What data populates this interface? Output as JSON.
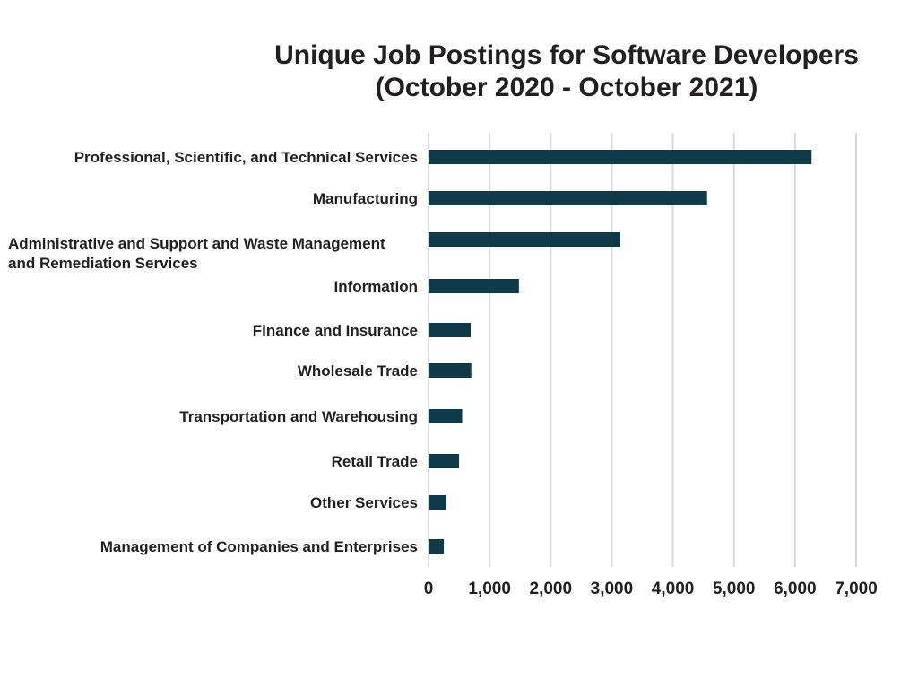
{
  "chart_data": {
    "type": "bar",
    "orientation": "horizontal",
    "title": "Unique Job Postings for Software Developers",
    "subtitle": "(October 2020 - October 2021)",
    "categories": [
      [
        "Professional, Scientific, and Technical Services"
      ],
      [
        "Manufacturing"
      ],
      [
        "Administrative and Support and Waste Management",
        "and Remediation Services"
      ],
      [
        "Information"
      ],
      [
        "Finance and Insurance"
      ],
      [
        "Wholesale Trade"
      ],
      [
        "Transportation and Warehousing"
      ],
      [
        "Retail Trade"
      ],
      [
        "Other Services"
      ],
      [
        "Management of Companies and Enterprises"
      ]
    ],
    "values": [
      6270,
      4560,
      3140,
      1480,
      690,
      700,
      550,
      500,
      280,
      250
    ],
    "xlim": [
      0,
      7000
    ],
    "xticks": [
      0,
      1000,
      2000,
      3000,
      4000,
      5000,
      6000,
      7000
    ],
    "xtick_labels": [
      "0",
      "1,000",
      "2,000",
      "3,000",
      "4,000",
      "5,000",
      "6,000",
      "7,000"
    ],
    "grid": "vertical",
    "legend": "none",
    "colors": {
      "bar": "#0f3a4a",
      "grid": "#d9d9d9",
      "text": "#231f20"
    }
  }
}
